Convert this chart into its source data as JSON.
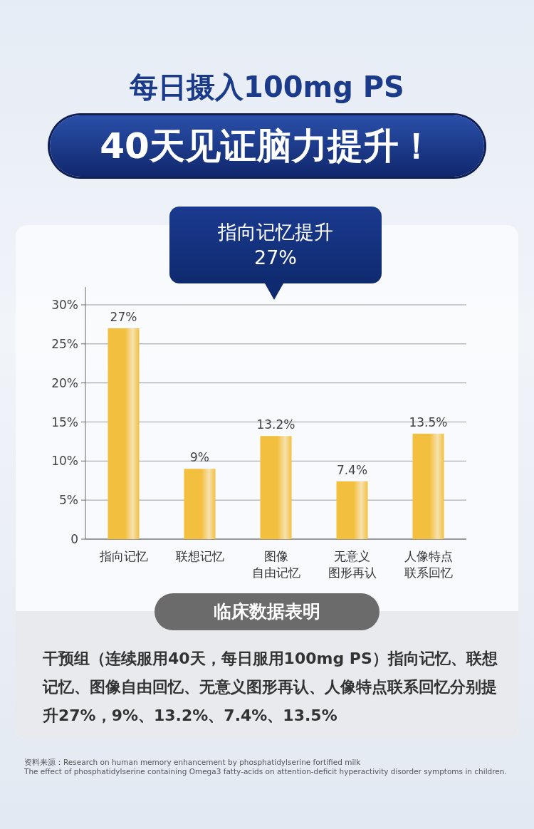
{
  "chart_data": {
    "type": "bar",
    "title": "每日摄入100mg PS",
    "subtitle": "40天见证脑力提升！",
    "categories": [
      "指向记忆",
      "联想记忆",
      "图像自由记忆",
      "无意义图形再认",
      "人像特点联系回忆"
    ],
    "values": [
      27,
      9,
      13.2,
      7.4,
      13.5
    ],
    "value_labels": [
      "27%",
      "9%",
      "13.2%",
      "7.4%",
      "13.5%"
    ],
    "color": "#f3bf3e",
    "ylim": [
      0,
      30
    ],
    "yticks": [
      {
        "value": 0,
        "label": "0"
      },
      {
        "value": 5,
        "label": "5%"
      },
      {
        "value": 10,
        "label": "10%"
      },
      {
        "value": 15,
        "label": "15%"
      },
      {
        "value": 20,
        "label": "20%"
      },
      {
        "value": 25,
        "label": "25%"
      },
      {
        "value": 30,
        "label": "30%"
      }
    ],
    "grid": "y",
    "annotations": [
      "指向记忆提升\n27%",
      "临床数据表明",
      "干预组（连续服用40天，每日服用100mg PS）指向记忆、联想记忆、图像自由回忆、无意义图形再认、人像特点联系回忆分别提升27%，9%、13.2%、7.4%、13.5%",
      "资料来源：Research on human memory enhancement by phosphatidylserine fortified milk",
      "The effect of phosphatidylserine containing Omega3 fatty-acids on attention-deficit hyperactivity disorder symptoms in children."
    ]
  }
}
